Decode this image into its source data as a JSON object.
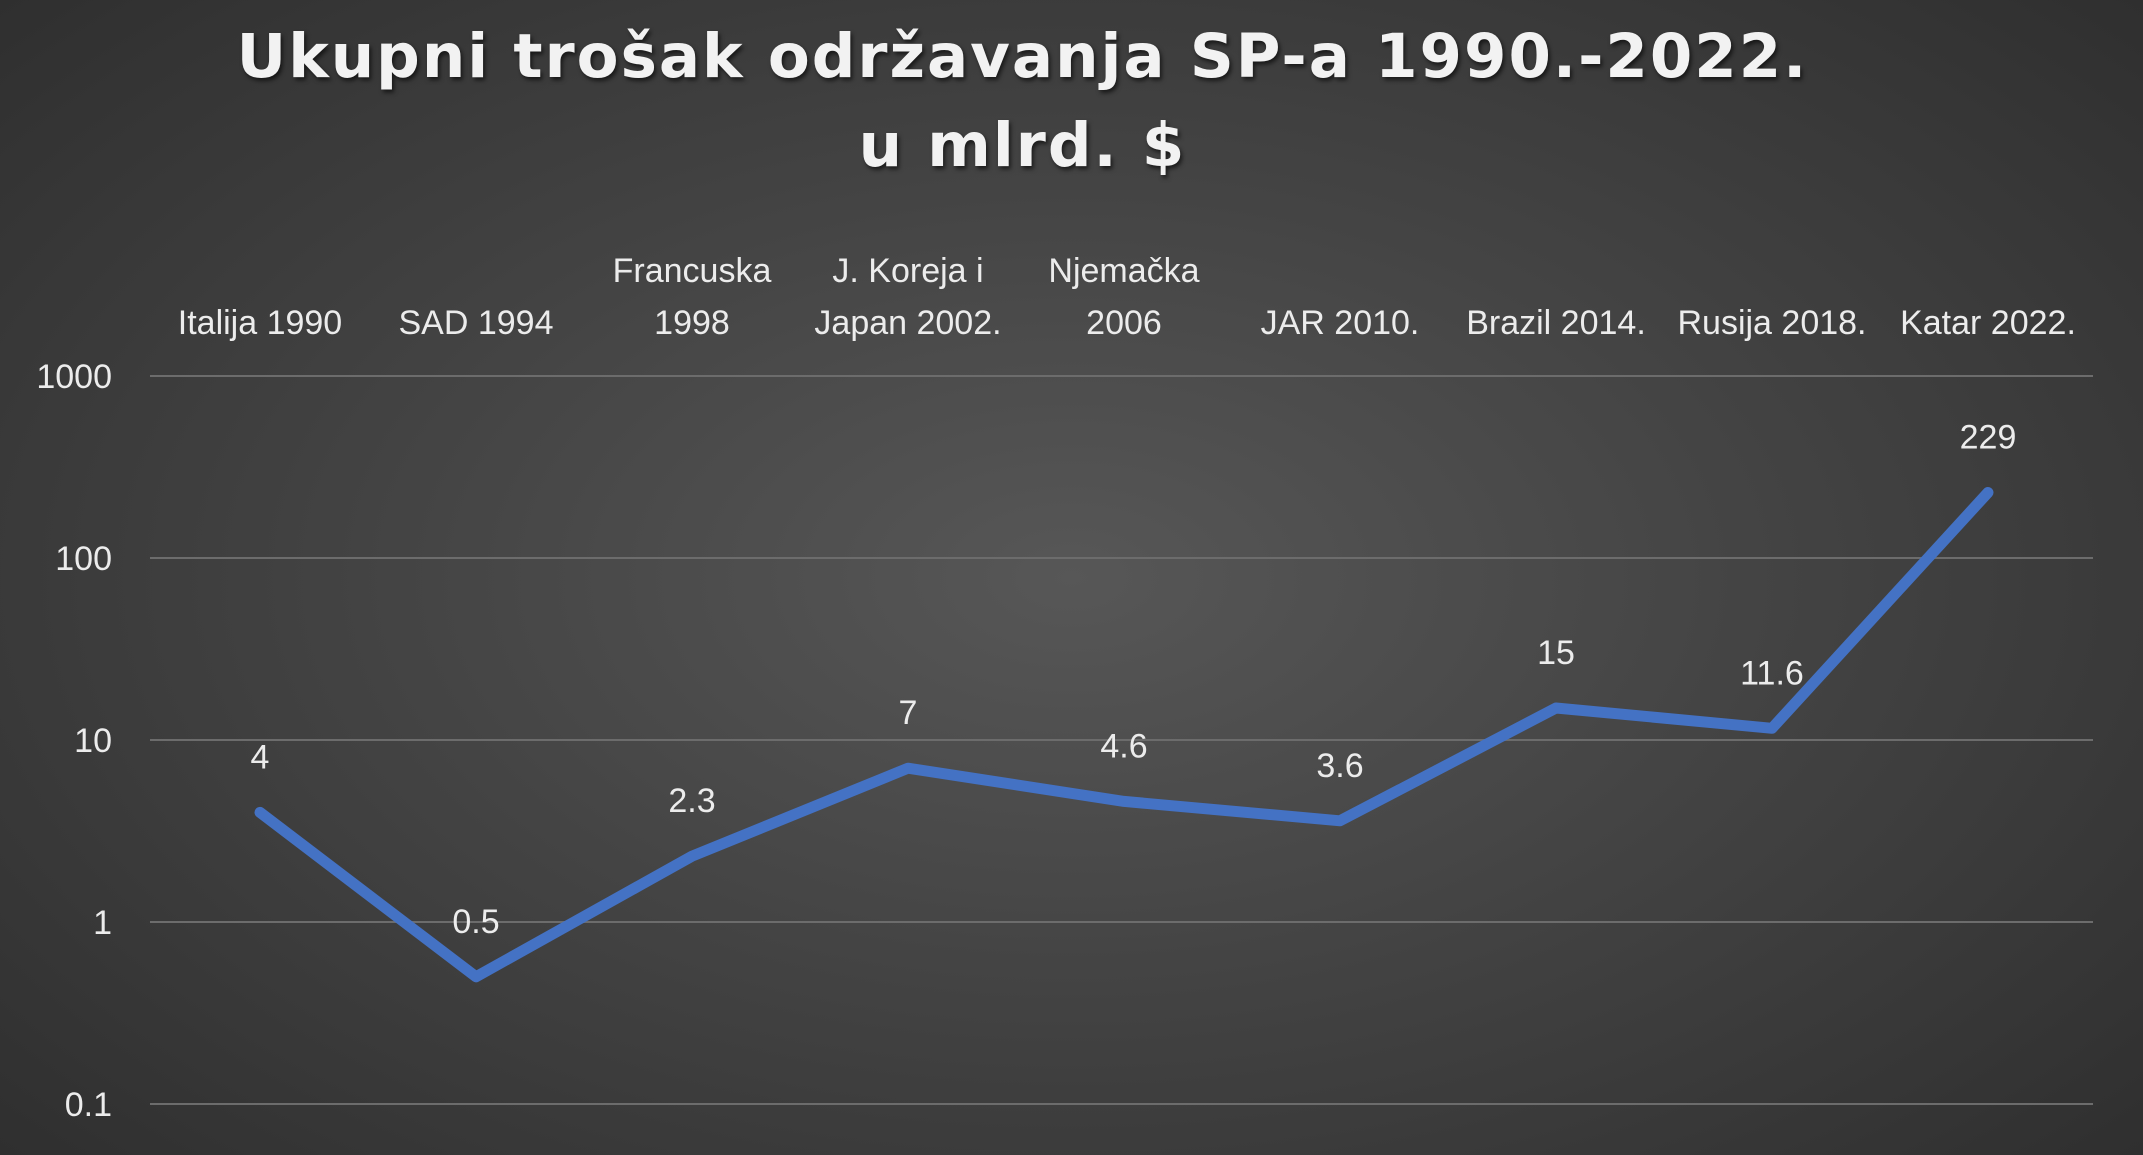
{
  "chart_data": {
    "type": "line",
    "title": "Ukupni trošak održavanja SP-a 1990.-2022. u mlrd. $",
    "categories": [
      [
        "Italija 1990"
      ],
      [
        "SAD 1994"
      ],
      [
        "Francuska",
        "1998"
      ],
      [
        "J. Koreja i",
        "Japan 2002."
      ],
      [
        "Njemačka",
        "2006"
      ],
      [
        "JAR 2010."
      ],
      [
        "Brazil 2014."
      ],
      [
        "Rusija 2018."
      ],
      [
        "Katar 2022."
      ]
    ],
    "series": [
      {
        "values": [
          4,
          0.5,
          2.3,
          7,
          4.6,
          3.6,
          15,
          11.6,
          229
        ],
        "color": "#4472C4"
      }
    ],
    "data_labels": [
      "4",
      "0.5",
      "2.3",
      "7",
      "4.6",
      "3.6",
      "15",
      "11.6",
      "229"
    ],
    "y_scale": "log10",
    "ylim": [
      0.1,
      1000
    ],
    "y_ticks": [
      "0.1",
      "1",
      "10",
      "100",
      "1000"
    ],
    "x_axis_position": "top",
    "grid": true,
    "legend": "none"
  }
}
